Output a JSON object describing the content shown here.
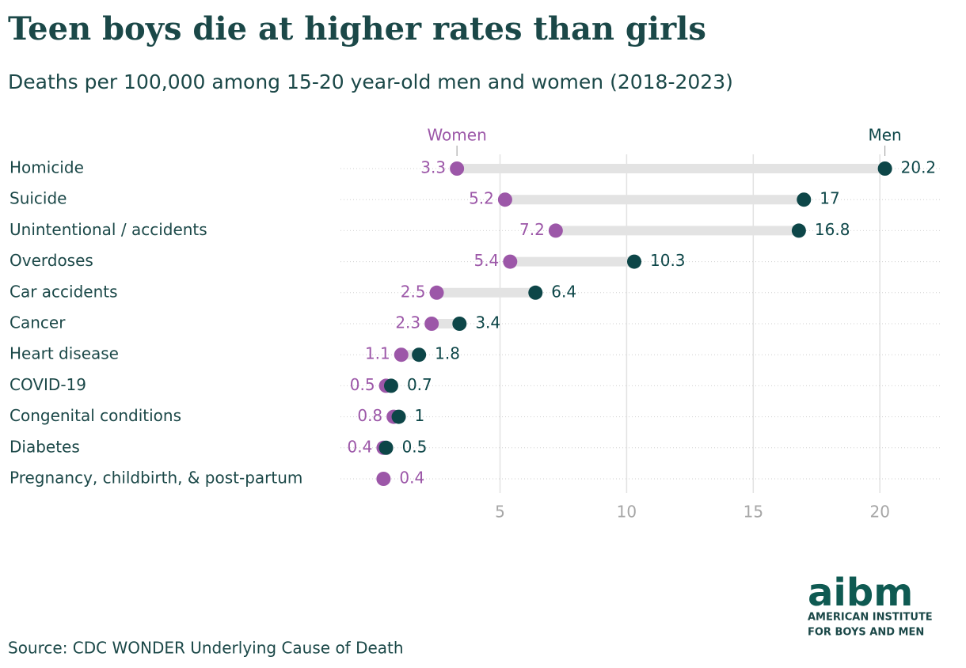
{
  "chart_data": {
    "type": "dumbbell",
    "title": "Teen boys die at higher rates than girls",
    "subtitle": "Deaths per 100,000 among 15-20 year-old men and women (2018-2023)",
    "categories": [
      "Homicide",
      "Suicide",
      "Unintentional / accidents",
      "Overdoses",
      "Car accidents",
      "Cancer",
      "Heart disease",
      "COVID-19",
      "Congenital conditions",
      "Diabetes",
      "Pregnancy, childbirth, & post-partum"
    ],
    "series": [
      {
        "name": "Women",
        "color": "#9c57a8",
        "values": [
          3.3,
          5.2,
          7.2,
          5.4,
          2.5,
          2.3,
          1.1,
          0.5,
          0.8,
          0.4,
          0.4
        ]
      },
      {
        "name": "Men",
        "color": "#0d4648",
        "values": [
          20.2,
          17,
          16.8,
          10.3,
          6.4,
          3.4,
          1.8,
          0.7,
          1,
          0.5,
          null
        ]
      }
    ],
    "xlim": [
      -1.3,
      22.4
    ],
    "xticks": [
      5,
      10,
      15,
      20
    ],
    "grid": true,
    "source": "Source: CDC WONDER Underlying Cause of Death",
    "logo": {
      "mark": "aibm",
      "line1": "AMERICAN INSTITUTE",
      "line2": "FOR BOYS AND MEN"
    }
  }
}
